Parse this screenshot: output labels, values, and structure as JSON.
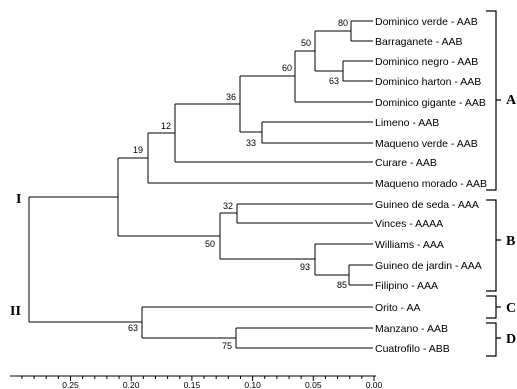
{
  "leaves": [
    "Dominico verde - AAB",
    "Barraganete - AAB",
    "Dominico negro - AAB",
    "Dominico  harton - AAB",
    "Dominico gigante - AAB",
    "Limeno - AAB",
    "Maqueno verde - AAB",
    "Curare - AAB",
    "Maqueno morado - AAB",
    "Guineo de seda - AAA",
    "Vinces - AAAA",
    "Williams - AAA",
    "Guineo de jardin - AAA",
    "Filipino - AAA",
    "Orito - AA",
    "Manzano - AAB",
    "Cuatrofilo - ABB"
  ],
  "bootstrap": [
    "80",
    "63",
    "50",
    "60",
    "33",
    "36",
    "12",
    "19",
    "85",
    "93",
    "32",
    "50",
    "75",
    "63"
  ],
  "groups": [
    "A",
    "B",
    "C",
    "D"
  ],
  "clusters": [
    "I",
    "II"
  ],
  "axis_ticks": [
    "0.25",
    "0.20",
    "0.15",
    "0.10",
    "0.05",
    "0.00"
  ]
}
